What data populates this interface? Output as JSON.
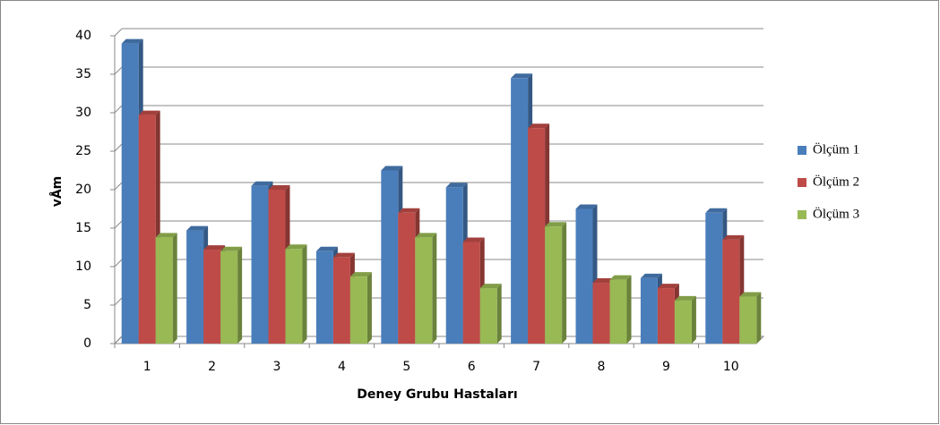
{
  "chart_data": {
    "type": "bar",
    "y_label": "vÅm",
    "x_label": "Deney Grubu Hastaları",
    "categories": [
      "1",
      "2",
      "3",
      "4",
      "5",
      "6",
      "7",
      "8",
      "9",
      "10"
    ],
    "series": [
      {
        "name": "Ölçüm 1",
        "color": "#4a7ebb",
        "values": [
          39,
          14.7,
          20.5,
          12,
          22.5,
          20.3,
          34.5,
          17.5,
          8.5,
          17
        ]
      },
      {
        "name": "Ölçüm 2",
        "color": "#be4b48",
        "values": [
          29.7,
          12.2,
          20,
          11.2,
          17,
          13.2,
          28,
          7.9,
          7.2,
          13.5
        ]
      },
      {
        "name": "Ölçüm 3",
        "color": "#98b954",
        "values": [
          13.8,
          12,
          12.3,
          8.7,
          13.8,
          7.2,
          15.2,
          8.3,
          5.6,
          6.1
        ]
      }
    ],
    "ylim": [
      0,
      40
    ],
    "yticks": [
      0,
      5,
      10,
      15,
      20,
      25,
      30,
      35,
      40
    ],
    "grid": true,
    "legend": "right"
  }
}
